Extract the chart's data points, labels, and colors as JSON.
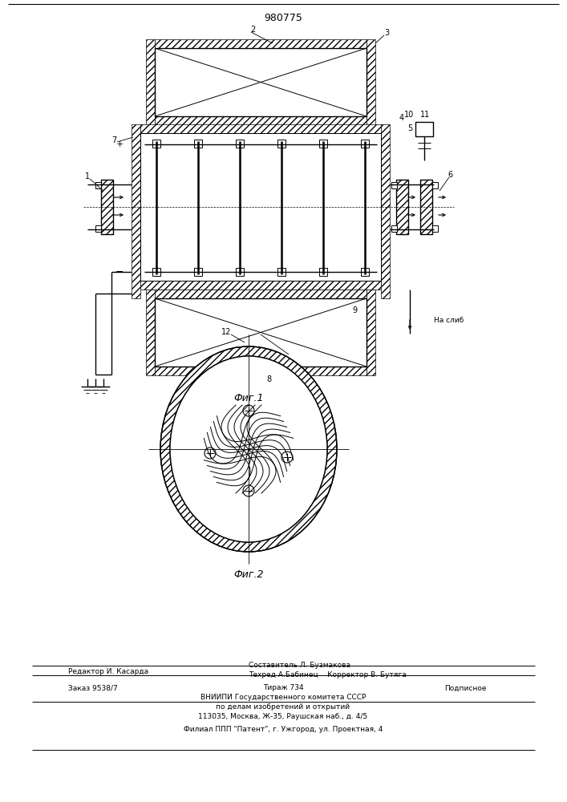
{
  "title_number": "980775",
  "fig1_caption": "Фиг.1",
  "fig2_caption": "Фиг.2",
  "line_color": "#1a1a1a",
  "footer_lines": [
    [
      "Редактор И. Касарда",
      85,
      852
    ],
    [
      "Составитель Л. Бузмакова",
      310,
      844
    ],
    [
      "Техред А.Бабинец    Корректор В. Бутяга",
      310,
      858
    ],
    [
      "Заказ 9538/7",
      85,
      870
    ],
    [
      "Тираж 734",
      310,
      870
    ],
    [
      "Подписное",
      560,
      870
    ],
    [
      "ВНИИПИ Государственного комитета СССР",
      353,
      885
    ],
    [
      "по делам изобретений и открытий",
      353,
      897
    ],
    [
      "113035, Москва, Ж-35, Раушская наб., д. 4/5",
      353,
      909
    ],
    [
      "Филиал ППП \"Патент\", г. Ужгород, ул. Проектная, 4",
      353,
      925
    ]
  ]
}
